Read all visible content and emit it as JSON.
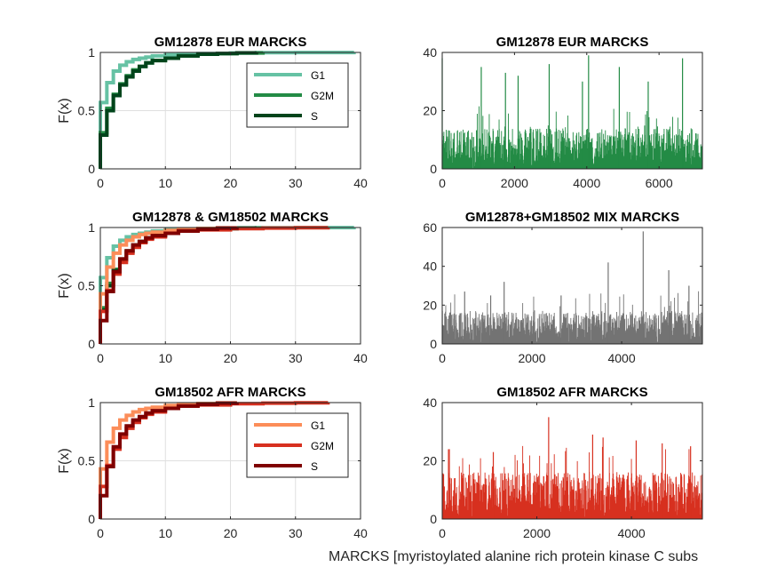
{
  "figure": {
    "xlabel": "MARCKS [myristoylated alanine rich protein kinase C subs"
  },
  "chart_data": [
    {
      "type": "line",
      "title": "GM12878 EUR MARCKS",
      "xlabel": "",
      "ylabel": "F(x)",
      "xlim": [
        0,
        40
      ],
      "ylim": [
        0,
        1
      ],
      "xticks": [
        0,
        10,
        20,
        30,
        40
      ],
      "yticks": [
        0,
        0.5,
        1
      ],
      "grid": true,
      "legend": "top-right",
      "series": [
        {
          "name": "G1",
          "color": "#66c2a4",
          "x": [
            0,
            1,
            2,
            3,
            4,
            5,
            6,
            7,
            8,
            10,
            12,
            15,
            20,
            24,
            30,
            39
          ],
          "y": [
            0.57,
            0.74,
            0.84,
            0.89,
            0.92,
            0.94,
            0.95,
            0.96,
            0.97,
            0.98,
            0.985,
            0.99,
            0.995,
            0.998,
            0.999,
            1.0
          ]
        },
        {
          "name": "G2M",
          "color": "#238b45",
          "x": [
            0,
            1,
            2,
            3,
            4,
            5,
            6,
            7,
            8,
            10,
            12,
            15,
            18,
            21,
            25
          ],
          "y": [
            0.31,
            0.52,
            0.64,
            0.73,
            0.8,
            0.85,
            0.88,
            0.91,
            0.93,
            0.95,
            0.97,
            0.985,
            0.99,
            0.995,
            1.0
          ]
        },
        {
          "name": "S",
          "color": "#00441b",
          "x": [
            0,
            1,
            2,
            3,
            4,
            5,
            6,
            7,
            8,
            10,
            12,
            15,
            18,
            21,
            24
          ],
          "y": [
            0.29,
            0.5,
            0.63,
            0.72,
            0.79,
            0.84,
            0.88,
            0.91,
            0.93,
            0.95,
            0.97,
            0.985,
            0.99,
            0.996,
            1.0
          ]
        }
      ]
    },
    {
      "type": "bar",
      "title": "GM12878 EUR MARCKS",
      "color": "#238b45",
      "xlim": [
        0,
        7200
      ],
      "ylim": [
        0,
        40
      ],
      "xticks": [
        0,
        2000,
        4000,
        6000
      ],
      "yticks": [
        0,
        20,
        40
      ],
      "n": 7200,
      "peaks": [
        {
          "x": 0,
          "y": 38
        },
        {
          "x": 1080,
          "y": 35
        },
        {
          "x": 1750,
          "y": 33
        },
        {
          "x": 2100,
          "y": 32
        },
        {
          "x": 2960,
          "y": 36
        },
        {
          "x": 3880,
          "y": 30
        },
        {
          "x": 4050,
          "y": 39
        },
        {
          "x": 4900,
          "y": 35
        },
        {
          "x": 5700,
          "y": 30
        },
        {
          "x": 6650,
          "y": 38
        }
      ],
      "typical_max": 14
    },
    {
      "type": "line",
      "title": "GM12878 & GM18502 MARCKS",
      "ylabel": "F(x)",
      "xlim": [
        0,
        40
      ],
      "ylim": [
        0,
        1
      ],
      "xticks": [
        0,
        10,
        20,
        30,
        40
      ],
      "yticks": [
        0,
        0.5,
        1
      ],
      "grid": true,
      "series": [
        {
          "name": "G1",
          "color": "#66c2a4",
          "x": [
            0,
            1,
            2,
            3,
            4,
            5,
            6,
            7,
            8,
            10,
            12,
            15,
            20,
            24,
            30,
            39
          ],
          "y": [
            0.57,
            0.74,
            0.84,
            0.89,
            0.92,
            0.94,
            0.95,
            0.96,
            0.97,
            0.98,
            0.985,
            0.99,
            0.995,
            0.998,
            0.999,
            1.0
          ]
        },
        {
          "name": "G2M",
          "color": "#238b45",
          "x": [
            0,
            1,
            2,
            3,
            4,
            5,
            6,
            7,
            8,
            10,
            12,
            15,
            18,
            21,
            25
          ],
          "y": [
            0.31,
            0.52,
            0.64,
            0.73,
            0.8,
            0.85,
            0.88,
            0.91,
            0.93,
            0.95,
            0.97,
            0.985,
            0.99,
            0.995,
            1.0
          ]
        },
        {
          "name": "S",
          "color": "#00441b",
          "x": [
            0,
            1,
            2,
            3,
            4,
            5,
            6,
            7,
            8,
            10,
            12,
            15,
            18,
            21,
            24
          ],
          "y": [
            0.29,
            0.5,
            0.63,
            0.72,
            0.79,
            0.84,
            0.88,
            0.91,
            0.93,
            0.95,
            0.97,
            0.985,
            0.99,
            0.996,
            1.0
          ]
        },
        {
          "name": "G1",
          "color": "#fc8d59",
          "x": [
            0,
            1,
            2,
            3,
            4,
            5,
            6,
            7,
            8,
            10,
            12,
            15,
            18,
            21
          ],
          "y": [
            0.43,
            0.66,
            0.78,
            0.85,
            0.89,
            0.92,
            0.94,
            0.95,
            0.96,
            0.975,
            0.985,
            0.992,
            0.997,
            1.0
          ]
        },
        {
          "name": "G2M",
          "color": "#d7301f",
          "x": [
            0,
            1,
            2,
            3,
            4,
            5,
            6,
            7,
            8,
            10,
            12,
            15,
            20,
            25,
            30,
            35
          ],
          "y": [
            0.28,
            0.46,
            0.6,
            0.7,
            0.78,
            0.83,
            0.87,
            0.9,
            0.92,
            0.95,
            0.97,
            0.98,
            0.99,
            0.995,
            0.998,
            1.0
          ]
        },
        {
          "name": "S",
          "color": "#7f0000",
          "x": [
            0,
            1,
            2,
            3,
            4,
            5,
            6,
            7,
            8,
            10,
            12,
            15,
            18,
            21
          ],
          "y": [
            0.2,
            0.45,
            0.62,
            0.73,
            0.8,
            0.85,
            0.88,
            0.91,
            0.93,
            0.95,
            0.97,
            0.985,
            0.995,
            1.0
          ]
        }
      ]
    },
    {
      "type": "bar",
      "title": "GM12878+GM18502 MIX MARCKS",
      "color": "#737373",
      "xlim": [
        0,
        5800
      ],
      "ylim": [
        0,
        60
      ],
      "xticks": [
        0,
        2000,
        4000
      ],
      "yticks": [
        0,
        20,
        40,
        60
      ],
      "n": 5800,
      "peaks": [
        {
          "x": 500,
          "y": 27
        },
        {
          "x": 1080,
          "y": 25
        },
        {
          "x": 1380,
          "y": 32
        },
        {
          "x": 2650,
          "y": 25
        },
        {
          "x": 3700,
          "y": 42
        },
        {
          "x": 4480,
          "y": 58
        },
        {
          "x": 5050,
          "y": 38
        },
        {
          "x": 5500,
          "y": 30
        }
      ],
      "typical_max": 17
    },
    {
      "type": "line",
      "title": "GM18502 AFR MARCKS",
      "ylabel": "F(x)",
      "xlim": [
        0,
        40
      ],
      "ylim": [
        0,
        1
      ],
      "xticks": [
        0,
        10,
        20,
        30,
        40
      ],
      "yticks": [
        0,
        0.5,
        1
      ],
      "grid": true,
      "legend": "top-right",
      "series": [
        {
          "name": "G1",
          "color": "#fc8d59",
          "x": [
            0,
            1,
            2,
            3,
            4,
            5,
            6,
            7,
            8,
            10,
            12,
            15,
            18,
            21
          ],
          "y": [
            0.43,
            0.66,
            0.78,
            0.85,
            0.89,
            0.92,
            0.94,
            0.95,
            0.96,
            0.975,
            0.985,
            0.992,
            0.997,
            1.0
          ]
        },
        {
          "name": "G2M",
          "color": "#d7301f",
          "x": [
            0,
            1,
            2,
            3,
            4,
            5,
            6,
            7,
            8,
            10,
            12,
            15,
            20,
            25,
            30,
            35
          ],
          "y": [
            0.28,
            0.46,
            0.6,
            0.7,
            0.78,
            0.83,
            0.87,
            0.9,
            0.92,
            0.95,
            0.97,
            0.98,
            0.99,
            0.995,
            0.998,
            1.0
          ]
        },
        {
          "name": "S",
          "color": "#7f0000",
          "x": [
            0,
            1,
            2,
            3,
            4,
            5,
            6,
            7,
            8,
            10,
            12,
            15,
            18,
            21
          ],
          "y": [
            0.2,
            0.45,
            0.62,
            0.73,
            0.8,
            0.85,
            0.88,
            0.91,
            0.93,
            0.95,
            0.97,
            0.985,
            0.995,
            1.0
          ]
        }
      ]
    },
    {
      "type": "bar",
      "title": "GM18502 AFR MARCKS",
      "color": "#d7301f",
      "xlim": [
        0,
        5500
      ],
      "ylim": [
        0,
        40
      ],
      "xticks": [
        0,
        2000,
        4000
      ],
      "yticks": [
        0,
        20,
        40
      ],
      "n": 5500,
      "peaks": [
        {
          "x": 150,
          "y": 24
        },
        {
          "x": 1080,
          "y": 23
        },
        {
          "x": 2250,
          "y": 35
        },
        {
          "x": 3180,
          "y": 29
        },
        {
          "x": 3400,
          "y": 28
        },
        {
          "x": 4100,
          "y": 27
        },
        {
          "x": 4650,
          "y": 26
        },
        {
          "x": 5250,
          "y": 25
        }
      ],
      "typical_max": 16
    }
  ]
}
